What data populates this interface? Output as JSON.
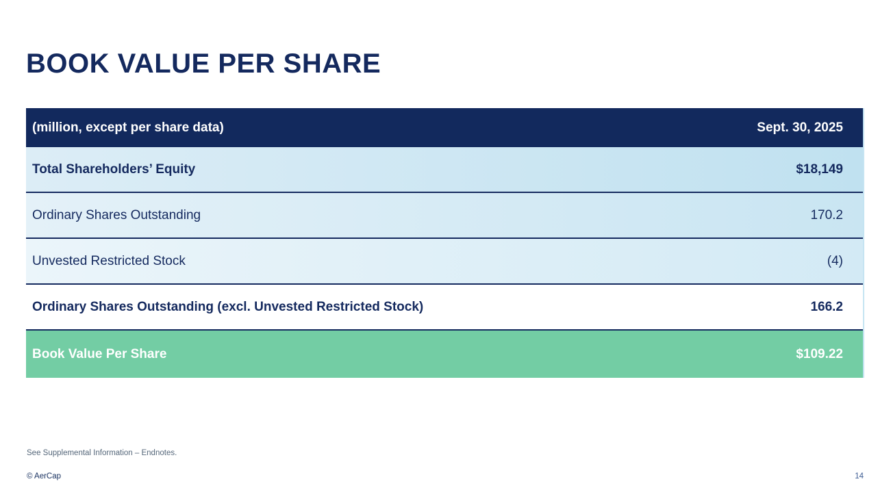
{
  "page": {
    "title": "BOOK VALUE PER SHARE",
    "footnote": "See Supplemental Information – Endnotes.",
    "copyright": "© AerCap",
    "page_number": "14"
  },
  "table": {
    "header": {
      "label": "(million, except per share data)",
      "value": "Sept. 30, 2025"
    },
    "rows": [
      {
        "label": "Total Shareholders’ Equity",
        "value": "$18,149"
      },
      {
        "label": "Ordinary Shares Outstanding",
        "value": "170.2"
      },
      {
        "label": "Unvested Restricted Stock",
        "value": "(4)"
      },
      {
        "label": "Ordinary Shares Outstanding (excl. Unvested Restricted Stock)",
        "value": "166.2"
      },
      {
        "label": "Book Value Per Share",
        "value": "$109.22"
      }
    ]
  },
  "colors": {
    "navy": "#14295E",
    "header_navy": "#12295D",
    "green": "#73CDA4",
    "light_blue_left": "#DCEDF6",
    "light_blue_right": "#C0E1F0",
    "footnote_gray": "#55677A",
    "page_number_blue": "#3D5C93"
  }
}
